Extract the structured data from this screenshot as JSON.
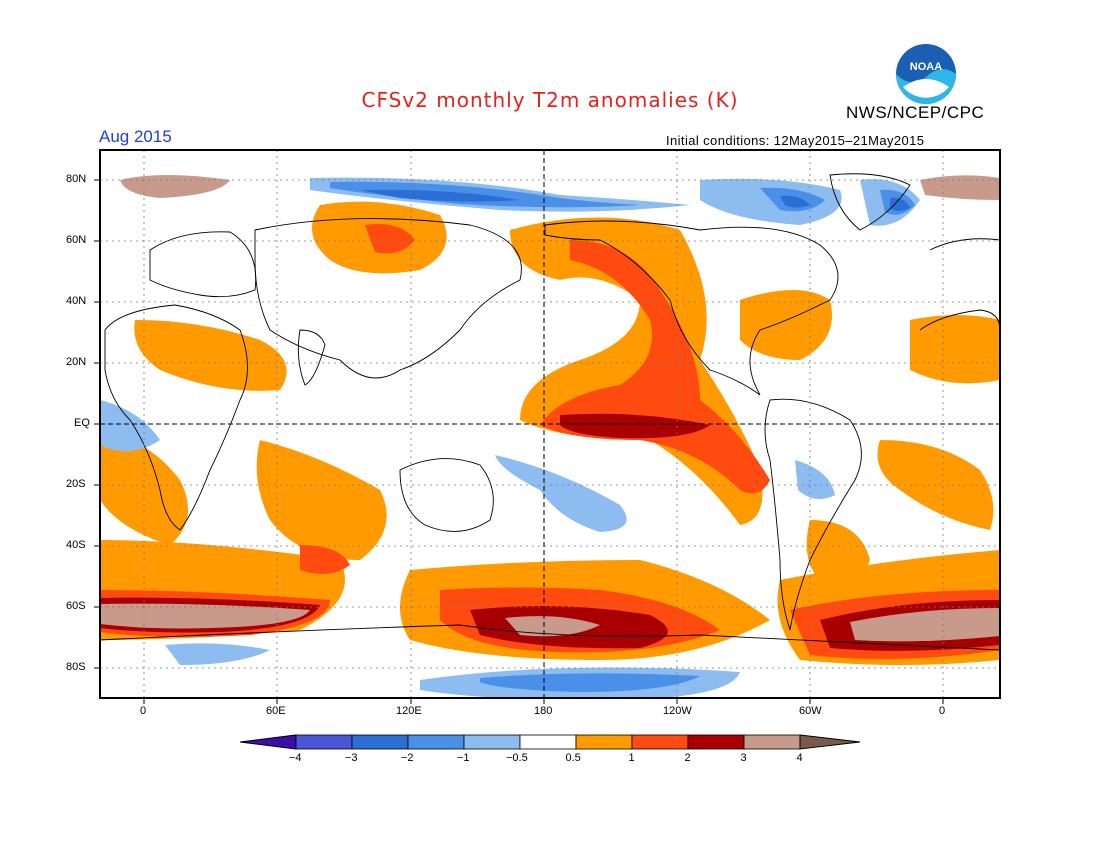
{
  "title": "CFSv2 monthly T2m anomalies (K)",
  "organization": "NWS/NCEP/CPC",
  "logo_text": "NOAA",
  "period": "Aug 2015",
  "initial_conditions": "Initial conditions: 12May2015–21May2015",
  "lat_labels": [
    "80N",
    "60N",
    "40N",
    "20N",
    "EQ",
    "20S",
    "40S",
    "60S",
    "80S"
  ],
  "lon_labels": [
    "0",
    "60E",
    "120E",
    "180",
    "120W",
    "60W",
    "0"
  ],
  "colorbar": {
    "labels": [
      "−4",
      "−3",
      "−2",
      "−1",
      "−0.5",
      "0.5",
      "1",
      "2",
      "3",
      "4"
    ],
    "colors": [
      "#3a10a8",
      "#4a55d8",
      "#2b6fd6",
      "#4a90e8",
      "#8cbcf0",
      "#ffffff",
      "#ff9b00",
      "#ff4a10",
      "#a80000",
      "#c89a8c",
      "#7a5a4a"
    ]
  }
}
